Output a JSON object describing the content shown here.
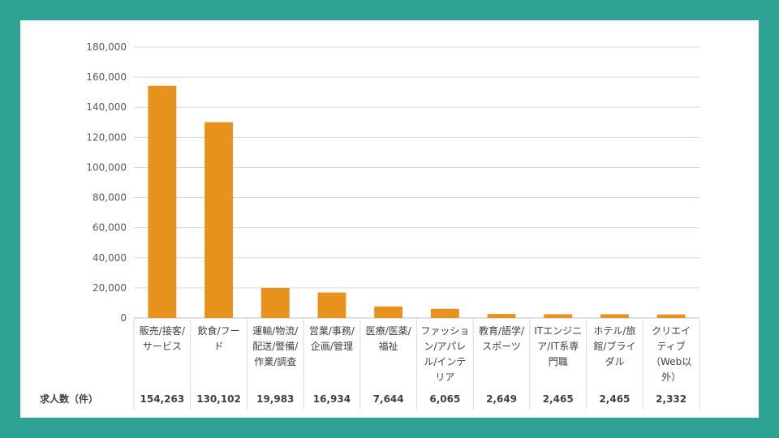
{
  "chart_data": {
    "type": "bar",
    "categories": [
      [
        "販売/接客/",
        "サービス"
      ],
      [
        "飲食/フー",
        "ド"
      ],
      [
        "運輸/物流/",
        "配送/警備/",
        "作業/調査"
      ],
      [
        "営業/事務/",
        "企画/管理"
      ],
      [
        "医療/医薬/",
        "福祉"
      ],
      [
        "ファッショ",
        "ン/アパレ",
        "ル/インテ",
        "リア"
      ],
      [
        "教育/語学/",
        "スポーツ"
      ],
      [
        "ITエンジニ",
        "ア/IT系専",
        "門職"
      ],
      [
        "ホテル/旅",
        "館/ブライ",
        "ダル"
      ],
      [
        "クリエイ",
        "ティブ",
        "（Web以",
        "外）"
      ]
    ],
    "values": [
      154263,
      130102,
      19983,
      16934,
      7644,
      6065,
      2649,
      2465,
      2465,
      2332
    ],
    "value_labels": [
      "154,263",
      "130,102",
      "19,983",
      "16,934",
      "7,644",
      "6,065",
      "2,649",
      "2,465",
      "2,465",
      "2,332"
    ],
    "row_header": "求人数（件）",
    "yticks": [
      "0",
      "20,000",
      "40,000",
      "60,000",
      "80,000",
      "100,000",
      "120,000",
      "140,000",
      "160,000",
      "180,000"
    ],
    "ylim": [
      0,
      180000
    ],
    "grid": true,
    "bar_color": "#e8921e",
    "background_color": "#2fa393"
  }
}
